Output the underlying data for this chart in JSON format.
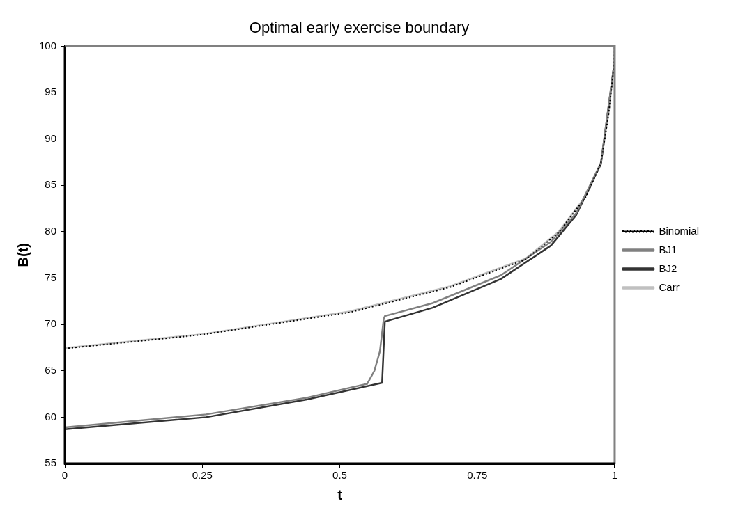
{
  "chart_data": {
    "type": "line",
    "title": "Optimal early exercise boundary",
    "xlabel": "t",
    "ylabel": "B(t)",
    "xlim": [
      0,
      1
    ],
    "xticks": [
      0,
      0.25,
      0.5,
      0.75,
      1
    ],
    "ylim": [
      55,
      100
    ],
    "yticks": [
      55,
      60,
      65,
      70,
      75,
      80,
      85,
      90,
      95,
      100
    ],
    "grid": false,
    "legend": "right",
    "marker": "none",
    "series": [
      {
        "name": "Binomial",
        "color": "#000000",
        "line_style": "dotted",
        "x": [
          0,
          0.25,
          0.518,
          0.7,
          0.838,
          0.898,
          0.948,
          0.975,
          0.989,
          0.999,
          1
        ],
        "values": [
          67.4,
          68.9,
          71.3,
          74.0,
          77.0,
          79.9,
          83.8,
          87.4,
          92.7,
          98.0,
          100
        ]
      },
      {
        "name": "BJ1",
        "color": "#808080",
        "line_style": "solid",
        "x": [
          0,
          0.257,
          0.44,
          0.55,
          0.563,
          0.573,
          0.58,
          0.582,
          0.669,
          0.793,
          0.884,
          0.93,
          0.975,
          0.999,
          1
        ],
        "values": [
          58.9,
          60.3,
          62.1,
          63.6,
          65.0,
          67.1,
          70.6,
          70.9,
          72.3,
          75.3,
          78.9,
          82.0,
          87.4,
          98.0,
          100
        ]
      },
      {
        "name": "BJ2",
        "color": "#333333",
        "line_style": "solid",
        "x": [
          0,
          0.257,
          0.44,
          0.577,
          0.582,
          0.669,
          0.793,
          0.884,
          0.93,
          0.975,
          0.999,
          1
        ],
        "values": [
          58.7,
          60.0,
          61.9,
          63.7,
          70.3,
          71.8,
          74.9,
          78.5,
          81.8,
          87.3,
          98.0,
          100
        ]
      },
      {
        "name": "Carr",
        "color": "#c0c0c0",
        "line_style": "solid",
        "x": [
          0,
          0.25,
          0.518,
          0.7,
          0.838,
          0.898,
          0.948,
          0.975,
          0.989,
          0.999,
          1
        ],
        "values": [
          67.45,
          68.95,
          71.4,
          74.1,
          77.1,
          80.0,
          83.9,
          87.5,
          92.8,
          98.1,
          100
        ]
      }
    ]
  }
}
